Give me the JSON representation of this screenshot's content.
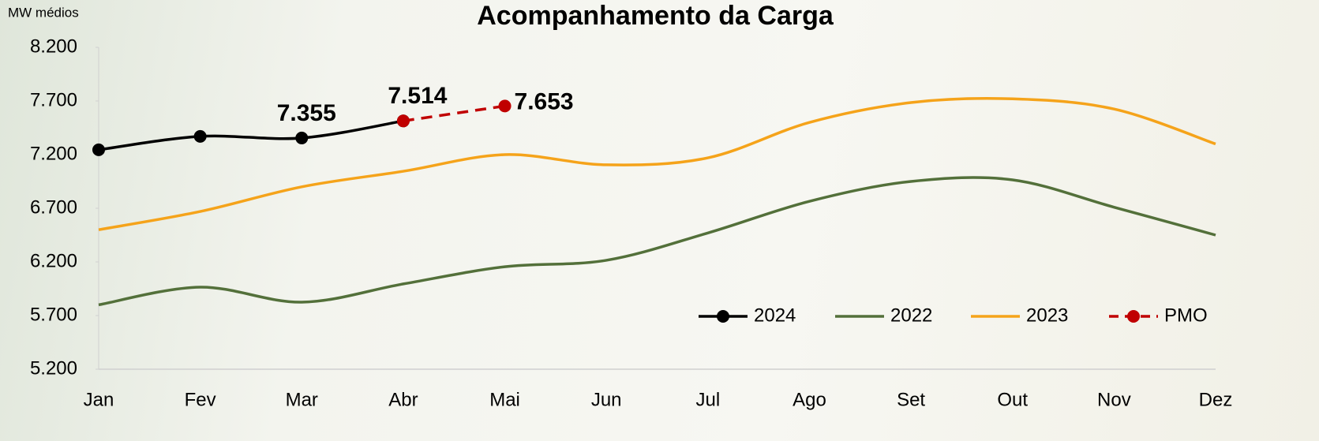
{
  "chart_data": {
    "type": "line",
    "title": "Acompanhamento da Carga",
    "y_axis_label": "MW médios",
    "categories": [
      "Jan",
      "Fev",
      "Mar",
      "Abr",
      "Mai",
      "Jun",
      "Jul",
      "Ago",
      "Set",
      "Out",
      "Nov",
      "Dez"
    ],
    "ylim": [
      5200,
      8200
    ],
    "yticks": [
      {
        "value": 5200,
        "label": "5.200"
      },
      {
        "value": 5700,
        "label": "5.700"
      },
      {
        "value": 6200,
        "label": "6.200"
      },
      {
        "value": 6700,
        "label": "6.700"
      },
      {
        "value": 7200,
        "label": "7.200"
      },
      {
        "value": 7700,
        "label": "7.700"
      },
      {
        "value": 8200,
        "label": "8.200"
      }
    ],
    "legend_position": "lower right",
    "series": [
      {
        "name": "2024",
        "color": "#000000",
        "markers": true,
        "dashed": false,
        "values": [
          7245,
          7370,
          7355,
          7514,
          null,
          null,
          null,
          null,
          null,
          null,
          null,
          null
        ],
        "value_labels": [
          null,
          null,
          "7.355",
          null,
          null,
          null,
          null,
          null,
          null,
          null,
          null,
          null
        ]
      },
      {
        "name": "2022",
        "color": "#53703a",
        "markers": false,
        "dashed": false,
        "values": [
          5800,
          5965,
          5825,
          5995,
          6155,
          6215,
          6470,
          6765,
          6950,
          6965,
          6710,
          6450
        ]
      },
      {
        "name": "2023",
        "color": "#f5a31a",
        "markers": false,
        "dashed": false,
        "values": [
          6500,
          6670,
          6900,
          7045,
          7200,
          7105,
          7170,
          7500,
          7685,
          7720,
          7625,
          7300
        ]
      },
      {
        "name": "PMO",
        "color": "#c00000",
        "markers": true,
        "dashed": true,
        "values": [
          null,
          null,
          null,
          7514,
          7653,
          null,
          null,
          null,
          null,
          null,
          null,
          null
        ],
        "value_labels": [
          null,
          null,
          null,
          "7.514",
          "7.653",
          null,
          null,
          null,
          null,
          null,
          null,
          null
        ]
      }
    ]
  }
}
